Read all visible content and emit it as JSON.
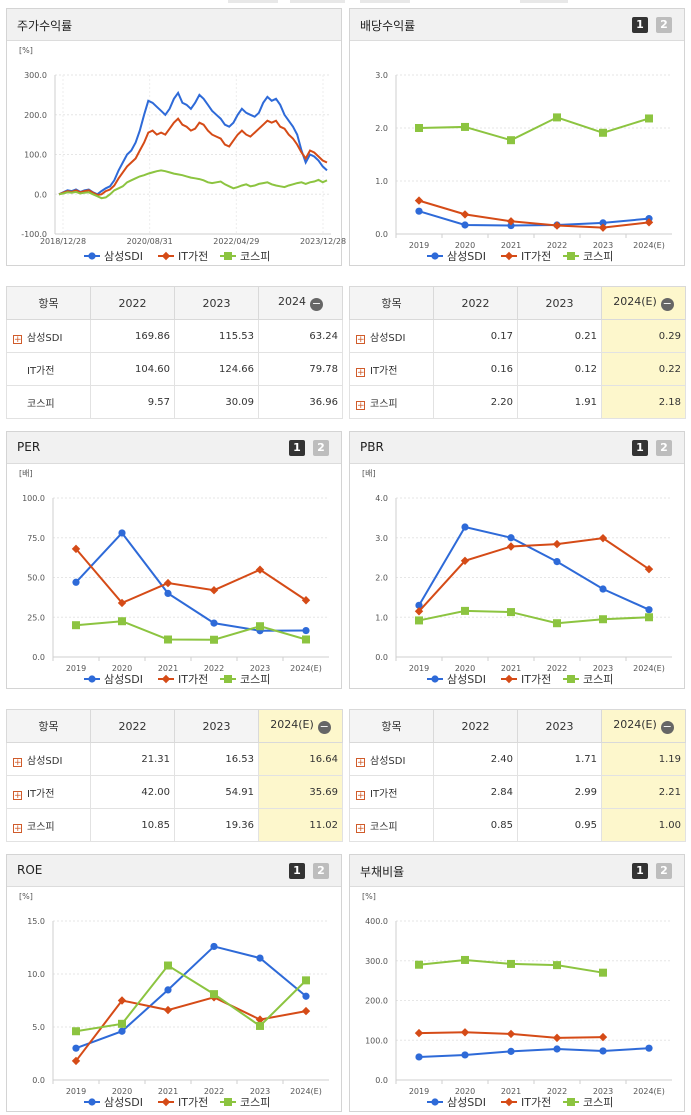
{
  "colors": {
    "s1": "#2e6ad8",
    "s2": "#d54b17",
    "s3": "#8cc440"
  },
  "legend": [
    "삼성SDI",
    "IT가전",
    "코스피"
  ],
  "chart1": {
    "title": "주가수익률",
    "chart_data": {
      "type": "line",
      "unit": "[%]",
      "ylim": [
        -100,
        300
      ],
      "yticks": [
        "300.0",
        "200.0",
        "100.0",
        "0.0",
        "-100.0"
      ],
      "xticks": [
        "2018/12/28",
        "2020/08/31",
        "2022/04/29",
        "2023/12/28"
      ],
      "series": [
        {
          "name": "삼성SDI",
          "values": [
            0,
            5,
            10,
            8,
            12,
            6,
            10,
            12,
            5,
            0,
            8,
            15,
            20,
            35,
            60,
            80,
            100,
            110,
            130,
            160,
            200,
            235,
            230,
            220,
            210,
            200,
            215,
            240,
            255,
            230,
            225,
            215,
            230,
            250,
            240,
            225,
            210,
            200,
            190,
            175,
            170,
            180,
            200,
            215,
            205,
            200,
            195,
            205,
            230,
            245,
            235,
            240,
            225,
            200,
            185,
            170,
            150,
            110,
            80,
            100,
            95,
            85,
            70,
            60
          ]
        },
        {
          "name": "IT가전",
          "values": [
            0,
            4,
            8,
            6,
            10,
            5,
            8,
            10,
            4,
            -2,
            0,
            8,
            12,
            22,
            40,
            55,
            70,
            80,
            90,
            110,
            130,
            155,
            160,
            150,
            155,
            150,
            165,
            180,
            190,
            175,
            170,
            160,
            165,
            180,
            175,
            160,
            150,
            145,
            140,
            125,
            120,
            135,
            150,
            160,
            150,
            145,
            155,
            165,
            175,
            185,
            180,
            185,
            170,
            165,
            150,
            140,
            125,
            105,
            90,
            110,
            105,
            95,
            85,
            80
          ]
        },
        {
          "name": "코스피",
          "values": [
            0,
            2,
            5,
            4,
            6,
            2,
            4,
            5,
            0,
            -5,
            -10,
            -8,
            0,
            10,
            15,
            20,
            30,
            35,
            40,
            45,
            48,
            52,
            55,
            58,
            60,
            58,
            55,
            52,
            50,
            48,
            45,
            42,
            40,
            38,
            35,
            30,
            28,
            30,
            32,
            25,
            20,
            15,
            18,
            22,
            25,
            20,
            22,
            26,
            28,
            30,
            25,
            22,
            20,
            18,
            22,
            25,
            28,
            30,
            26,
            30,
            32,
            36,
            30,
            35
          ]
        }
      ]
    }
  },
  "table1": {
    "head": [
      "항목",
      "2022",
      "2023",
      "2024"
    ],
    "rows": [
      {
        "name": "삼성SDI",
        "v": [
          "169.86",
          "115.53",
          "63.24"
        ]
      },
      {
        "name": "IT가전",
        "v": [
          "104.60",
          "124.66",
          "79.78"
        ]
      },
      {
        "name": "코스피",
        "v": [
          "9.57",
          "30.09",
          "36.96"
        ]
      }
    ]
  },
  "chart2": {
    "title": "배당수익률",
    "pages": [
      "1",
      "2"
    ],
    "chart_data": {
      "type": "line",
      "ylim": [
        0,
        3
      ],
      "yticks": [
        "3.0",
        "2.0",
        "1.0",
        "0.0"
      ],
      "categories": [
        "2019",
        "2020",
        "2021",
        "2022",
        "2023",
        "2024(E)"
      ],
      "series": [
        {
          "name": "삼성SDI",
          "values": [
            0.43,
            0.17,
            0.16,
            0.17,
            0.21,
            0.29
          ]
        },
        {
          "name": "IT가전",
          "values": [
            0.63,
            0.37,
            0.24,
            0.16,
            0.12,
            0.22
          ]
        },
        {
          "name": "코스피",
          "values": [
            2.0,
            2.02,
            1.77,
            2.2,
            1.91,
            2.18
          ]
        }
      ]
    }
  },
  "table2": {
    "head": [
      "항목",
      "2022",
      "2023",
      "2024(E)"
    ],
    "rows": [
      {
        "name": "삼성SDI",
        "v": [
          "0.17",
          "0.21",
          "0.29"
        ]
      },
      {
        "name": "IT가전",
        "v": [
          "0.16",
          "0.12",
          "0.22"
        ]
      },
      {
        "name": "코스피",
        "v": [
          "2.20",
          "1.91",
          "2.18"
        ]
      }
    ]
  },
  "chart3": {
    "title": "PER",
    "pages": [
      "1",
      "2"
    ],
    "chart_data": {
      "type": "line",
      "unit": "[배]",
      "ylim": [
        0,
        100
      ],
      "yticks": [
        "100.0",
        "75.0",
        "50.0",
        "25.0",
        "0.0"
      ],
      "categories": [
        "2019",
        "2020",
        "2021",
        "2022",
        "2023",
        "2024(E)"
      ],
      "series": [
        {
          "name": "삼성SDI",
          "values": [
            47,
            78,
            40,
            21.31,
            16.53,
            16.64
          ]
        },
        {
          "name": "IT가전",
          "values": [
            68,
            34,
            46.5,
            42.0,
            54.91,
            35.69
          ]
        },
        {
          "name": "코스피",
          "values": [
            20,
            22.5,
            11,
            10.85,
            19.36,
            11.02
          ]
        }
      ]
    }
  },
  "table3": {
    "head": [
      "항목",
      "2022",
      "2023",
      "2024(E)"
    ],
    "rows": [
      {
        "name": "삼성SDI",
        "v": [
          "21.31",
          "16.53",
          "16.64"
        ]
      },
      {
        "name": "IT가전",
        "v": [
          "42.00",
          "54.91",
          "35.69"
        ]
      },
      {
        "name": "코스피",
        "v": [
          "10.85",
          "19.36",
          "11.02"
        ]
      }
    ]
  },
  "chart4": {
    "title": "PBR",
    "pages": [
      "1",
      "2"
    ],
    "chart_data": {
      "type": "line",
      "unit": "[배]",
      "ylim": [
        0,
        4
      ],
      "yticks": [
        "4.0",
        "3.0",
        "2.0",
        "1.0",
        "0.0"
      ],
      "categories": [
        "2019",
        "2020",
        "2021",
        "2022",
        "2023",
        "2024(E)"
      ],
      "series": [
        {
          "name": "삼성SDI",
          "values": [
            1.3,
            3.27,
            3.0,
            2.4,
            1.71,
            1.19
          ]
        },
        {
          "name": "IT가전",
          "values": [
            1.15,
            2.42,
            2.78,
            2.84,
            2.99,
            2.21
          ]
        },
        {
          "name": "코스피",
          "values": [
            0.92,
            1.16,
            1.13,
            0.85,
            0.95,
            1.0
          ]
        }
      ]
    }
  },
  "table4": {
    "head": [
      "항목",
      "2022",
      "2023",
      "2024(E)"
    ],
    "rows": [
      {
        "name": "삼성SDI",
        "v": [
          "2.40",
          "1.71",
          "1.19"
        ]
      },
      {
        "name": "IT가전",
        "v": [
          "2.84",
          "2.99",
          "2.21"
        ]
      },
      {
        "name": "코스피",
        "v": [
          "0.85",
          "0.95",
          "1.00"
        ]
      }
    ]
  },
  "chart5": {
    "title": "ROE",
    "pages": [
      "1",
      "2"
    ],
    "chart_data": {
      "type": "line",
      "unit": "[%]",
      "ylim": [
        0,
        15
      ],
      "yticks": [
        "15.0",
        "10.0",
        "5.0",
        "0.0"
      ],
      "categories": [
        "2019",
        "2020",
        "2021",
        "2022",
        "2023",
        "2024(E)"
      ],
      "series": [
        {
          "name": "삼성SDI",
          "values": [
            3.0,
            4.6,
            8.5,
            12.6,
            11.5,
            7.9
          ]
        },
        {
          "name": "IT가전",
          "values": [
            1.8,
            7.5,
            6.6,
            7.8,
            5.7,
            6.5
          ]
        },
        {
          "name": "코스피",
          "values": [
            4.6,
            5.3,
            10.8,
            8.1,
            5.1,
            9.4
          ]
        }
      ]
    }
  },
  "chart6": {
    "title": "부채비율",
    "pages": [
      "1",
      "2"
    ],
    "chart_data": {
      "type": "line",
      "unit": "[%]",
      "ylim": [
        0,
        400
      ],
      "yticks": [
        "400.0",
        "300.0",
        "200.0",
        "100.0",
        "0.0"
      ],
      "categories": [
        "2019",
        "2020",
        "2021",
        "2022",
        "2023",
        "2024(E)"
      ],
      "series": [
        {
          "name": "삼성SDI",
          "values": [
            58,
            63,
            72,
            78,
            73,
            80
          ]
        },
        {
          "name": "IT가전",
          "values": [
            118,
            120,
            116,
            106,
            108,
            null
          ]
        },
        {
          "name": "코스피",
          "values": [
            290,
            302,
            292,
            289,
            270,
            null
          ]
        }
      ]
    }
  }
}
